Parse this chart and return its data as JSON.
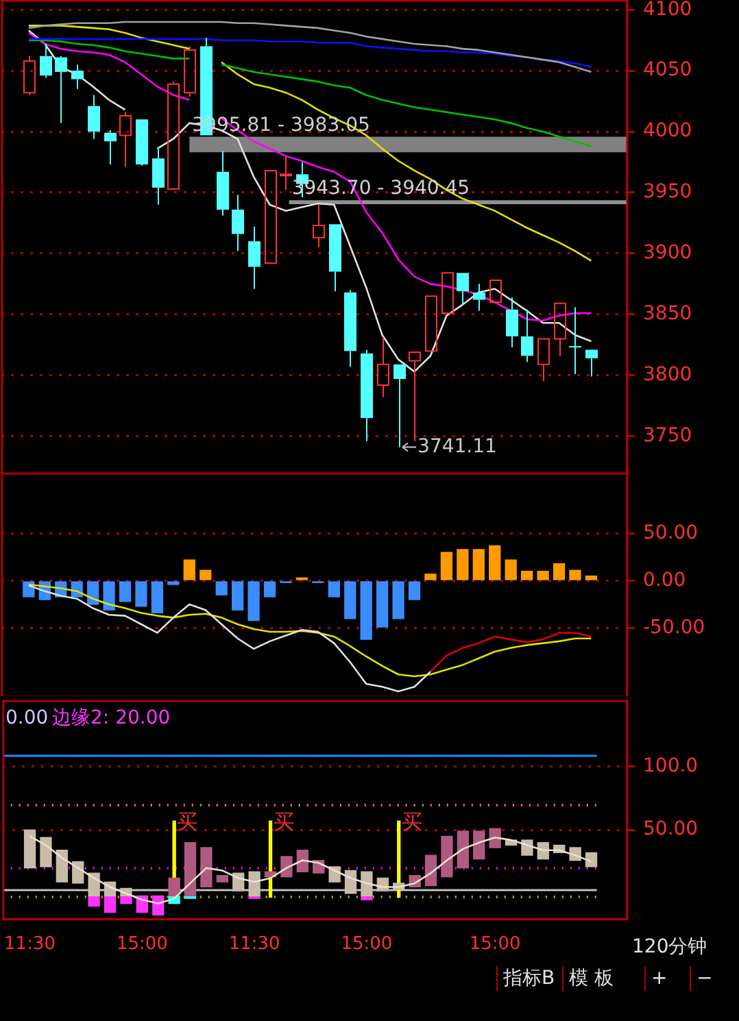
{
  "chart_data": [
    {
      "type": "candlestick",
      "categories": [
        null,
        null,
        null,
        null,
        null,
        null,
        null,
        null,
        null,
        null,
        null,
        null,
        null,
        null,
        null,
        null,
        null,
        null,
        null,
        null,
        null,
        null,
        null,
        null,
        null,
        null,
        null,
        null,
        null,
        null,
        null,
        null,
        null,
        null,
        null,
        null
      ],
      "ohlc": [
        [
          4032,
          4062,
          4030,
          4058
        ],
        [
          4062,
          4072,
          4044,
          4046
        ],
        [
          4061,
          4062,
          4007,
          4049
        ],
        [
          4050,
          4055,
          4035,
          4043
        ],
        [
          4021,
          4030,
          3994,
          4000
        ],
        [
          3999,
          4001,
          3973,
          3992
        ],
        [
          3997,
          4016,
          3971,
          4013
        ],
        [
          4010,
          4010,
          3972,
          3973
        ],
        [
          3978,
          3987,
          3940,
          3954
        ],
        [
          3953,
          4041,
          3953,
          4039
        ],
        [
          4032,
          4070,
          4029,
          4067
        ],
        [
          4070,
          4077,
          3997,
          3997
        ],
        [
          3967,
          3984,
          3931,
          3936
        ],
        [
          3936,
          3948,
          3902,
          3916
        ],
        [
          3910,
          3922,
          3871,
          3889
        ],
        [
          3892,
          3968,
          3892,
          3968
        ],
        [
          3964,
          3980,
          3952,
          3965
        ],
        [
          3965,
          3975,
          3946,
          3957
        ],
        [
          3913,
          3940,
          3905,
          3923
        ],
        [
          3924,
          3924,
          3869,
          3885
        ],
        [
          3868,
          3870,
          3807,
          3820
        ],
        [
          3818,
          3821,
          3746,
          3765
        ],
        [
          3792,
          3831,
          3782,
          3809
        ],
        [
          3809,
          3809,
          3741.11,
          3797
        ],
        [
          3812,
          3819,
          3746,
          3819
        ],
        [
          3820,
          3865,
          3820,
          3865
        ],
        [
          3851,
          3884,
          3851,
          3884
        ],
        [
          3884,
          3884,
          3858,
          3869
        ],
        [
          3868,
          3875,
          3853,
          3862
        ],
        [
          3860,
          3878,
          3860,
          3878
        ],
        [
          3854,
          3864,
          3823,
          3832
        ],
        [
          3832,
          3854,
          3811,
          3816
        ],
        [
          3809,
          3830,
          3795,
          3830
        ],
        [
          3830,
          3859,
          3816,
          3859
        ],
        [
          3824,
          3856,
          3801,
          3823
        ],
        [
          3821,
          3821,
          3799,
          3814
        ]
      ],
      "series": [
        {
          "type": "line",
          "color": "#a0a0a0",
          "values": [
            4085,
            4087,
            4088,
            4089,
            4089,
            4089,
            4090,
            4090,
            4090,
            4090,
            4090,
            4090,
            4090,
            4089,
            4089,
            4088,
            4087,
            4086,
            4085,
            4083,
            4081,
            4078,
            4076,
            4074,
            4072,
            4071,
            4070,
            4068,
            4067,
            4065,
            4063,
            4061,
            4059,
            4057,
            4053,
            4049
          ]
        },
        {
          "type": "line",
          "color": "#1010ff",
          "values": [
            4076,
            4076,
            4076,
            4076,
            4076,
            4076,
            4076,
            4076,
            4076,
            4076,
            4076,
            4076,
            4075,
            4075,
            4075,
            4074,
            4074,
            4074,
            4073,
            4073,
            4073,
            4070,
            4069,
            4068,
            4067,
            4066,
            4066,
            4065,
            4065,
            4064,
            4062,
            4061,
            4059,
            4058,
            4056,
            4053
          ]
        },
        {
          "type": "line",
          "color": "#00c000",
          "values": [
            4075,
            4075,
            4074,
            4072,
            4071,
            4069,
            4066,
            4064,
            4062,
            4060,
            4060,
            null,
            4055,
            4052,
            4049,
            4047,
            4045,
            4043,
            4041,
            4038,
            4036,
            4030,
            4026,
            4023,
            4020,
            4018,
            4016,
            4014,
            4012,
            4010,
            4007,
            4003,
            4000,
            3996,
            3992,
            3988
          ]
        },
        {
          "type": "line",
          "color": "#e0e000",
          "values": [
            4087,
            4087,
            4087,
            4086,
            4085,
            4084,
            4081,
            4077,
            4074,
            4071,
            4068,
            null,
            4057,
            4047,
            4039,
            4036,
            4032,
            4026,
            4018,
            4011,
            4005,
            3997,
            3986,
            3976,
            3968,
            3961,
            3952,
            3945,
            3940,
            3935,
            3928,
            3921,
            3915,
            3909,
            3902,
            3894
          ]
        },
        {
          "type": "line",
          "color": "#ff00ff",
          "values": [
            4081,
            4072,
            4068,
            4066,
            4065,
            4063,
            4057,
            4047,
            4037,
            4030,
            4026,
            null,
            4011,
            4001,
            3992,
            3986,
            3980,
            3976,
            3971,
            3967,
            3959,
            3934,
            3917,
            3895,
            3881,
            3875,
            3873,
            3870,
            3866,
            3860,
            3853,
            3846,
            3845,
            3849,
            3851,
            3851
          ]
        },
        {
          "type": "line",
          "color": "#e0e0e0",
          "values": [
            4083,
            4072,
            4053,
            4047,
            4037,
            4026,
            4018,
            null,
            3986,
            3994,
            4007,
            4005,
            4001,
            3994,
            3963,
            3940,
            3935,
            3938,
            3941,
            3940,
            3906,
            3872,
            3833,
            3813,
            3803,
            3816,
            3849,
            3858,
            3868,
            3871,
            3862,
            3853,
            3843,
            3843,
            3833,
            3828
          ]
        }
      ],
      "ylim": [
        3720,
        4108
      ],
      "yticks": [
        3750,
        3800,
        3850,
        3900,
        3950,
        4000,
        4050,
        4100
      ],
      "grid": "y",
      "tick_labels": "y",
      "bands": [
        {
          "axis": "y",
          "from": 3983.05,
          "to": 3995.81,
          "label": "3995.81 - 3983.05",
          "color": "#808080"
        },
        {
          "axis": "y",
          "from": 3940.45,
          "to": 3943.7,
          "label": "3943.70 - 3940.45",
          "color": "#909090"
        }
      ],
      "annotations": [
        "3741.11"
      ]
    },
    {
      "type": "bar",
      "categories": [
        null,
        null,
        null,
        null,
        null,
        null,
        null,
        null,
        null,
        null,
        null,
        null,
        null,
        null,
        null,
        null,
        null,
        null,
        null,
        null,
        null,
        null,
        null,
        null,
        null,
        null,
        null,
        null,
        null,
        null,
        null,
        null,
        null,
        null,
        null,
        null
      ],
      "series": [
        {
          "type": "bar",
          "values": [
            -17,
            -20,
            -17,
            -17,
            -25,
            -31,
            -22,
            -27,
            -34,
            -4,
            22,
            11,
            -15,
            -31,
            -42,
            -17,
            -2,
            3,
            -2,
            -17,
            -40,
            -62,
            -49,
            -40,
            -20,
            7,
            30,
            33,
            33,
            37,
            22,
            10,
            10,
            18,
            11,
            5
          ],
          "colors": [
            "#3a8cff",
            "#3a8cff",
            "#3a8cff",
            "#3a8cff",
            "#3a8cff",
            "#3a8cff",
            "#3a8cff",
            "#3a8cff",
            "#3a8cff",
            "#3a8cff",
            "#ff9a00",
            "#ff9a00",
            "#3a8cff",
            "#3a8cff",
            "#3a8cff",
            "#3a8cff",
            "#3a8cff",
            "#ff9a00",
            "#3a8cff",
            "#3a8cff",
            "#3a8cff",
            "#3a8cff",
            "#3a8cff",
            "#3a8cff",
            "#3a8cff",
            "#ff9a00",
            "#ff9a00",
            "#ff9a00",
            "#ff9a00",
            "#ff9a00",
            "#ff9a00",
            "#ff9a00",
            "#ff9a00",
            "#ff9a00",
            "#ff9a00",
            "#ff9a00"
          ]
        },
        {
          "type": "line",
          "color": "#e0e0e0",
          "values": [
            -5,
            -11,
            -16,
            -19,
            -29,
            -36,
            -37,
            -46,
            -55,
            -39,
            -25,
            -31,
            -46,
            -61,
            -72,
            -64,
            -58,
            -52,
            -54,
            -66,
            -86,
            -109,
            -112,
            -117,
            -112,
            -96,
            null,
            null,
            null,
            null,
            null,
            null,
            null,
            null,
            null,
            null
          ]
        },
        {
          "type": "line",
          "color": "#e00000",
          "values": [
            null,
            null,
            null,
            null,
            null,
            null,
            null,
            null,
            null,
            null,
            null,
            null,
            null,
            null,
            null,
            null,
            null,
            null,
            null,
            null,
            null,
            null,
            null,
            null,
            null,
            -96,
            -79,
            -71,
            -66,
            -59,
            -62,
            -65,
            -62,
            -55,
            -55,
            -59
          ]
        },
        {
          "type": "line",
          "color": "#e0e000",
          "values": [
            -4,
            -6,
            -8,
            -11,
            -19,
            -25,
            -29,
            -34,
            -37,
            -39,
            -36,
            -35,
            -39,
            -46,
            -51,
            -54,
            -54,
            -53,
            -55,
            -59,
            -69,
            -80,
            -90,
            -99,
            -101,
            -99,
            -94,
            -89,
            -82,
            -75,
            -71,
            -68,
            -66,
            -64,
            -61,
            -61
          ]
        }
      ],
      "ylim": [
        -122,
        114
      ],
      "yticks": [
        {
          "value": 50,
          "label": "50.00"
        },
        {
          "value": 0,
          "label": "0.00"
        },
        {
          "value": -50,
          "label": "-50.00"
        }
      ],
      "grid": "y",
      "tick_labels": "y"
    },
    {
      "type": "bar",
      "categories": [
        "11:30",
        null,
        null,
        null,
        null,
        null,
        null,
        "15:00",
        null,
        null,
        null,
        null,
        null,
        null,
        "11:30",
        null,
        null,
        null,
        null,
        null,
        null,
        "15:00",
        null,
        null,
        null,
        null,
        null,
        null,
        null,
        "15:00",
        null,
        null,
        null,
        null,
        null,
        null
      ],
      "series": [
        {
          "type": "bar",
          "color": "#c8bca8",
          "base": [
            20,
            21,
            9,
            8,
            -2,
            -2,
            -2,
            null,
            null,
            null,
            null,
            null,
            null,
            2,
            -2,
            null,
            null,
            null,
            null,
            9,
            0,
            -2,
            2,
            3,
            null,
            null,
            null,
            null,
            null,
            null,
            38,
            30,
            27,
            32,
            26,
            21
          ],
          "values": [
            30,
            23,
            25,
            17,
            18,
            11,
            6,
            null,
            null,
            null,
            null,
            null,
            null,
            14,
            19,
            null,
            null,
            null,
            null,
            12,
            18,
            19,
            10,
            5,
            null,
            null,
            null,
            null,
            null,
            null,
            4,
            12,
            13,
            6,
            10,
            11
          ]
        },
        {
          "type": "bar",
          "color": "#b05a82",
          "base": [
            null,
            null,
            null,
            null,
            null,
            null,
            null,
            null,
            null,
            -2,
            -2,
            5,
            9,
            null,
            null,
            13,
            13,
            17,
            16,
            null,
            null,
            null,
            null,
            null,
            5,
            6,
            13,
            20,
            27,
            36,
            null,
            null,
            null,
            null,
            null,
            null
          ],
          "values": [
            null,
            null,
            null,
            null,
            null,
            null,
            null,
            null,
            null,
            14,
            42,
            31,
            5,
            null,
            null,
            4,
            16,
            17,
            10,
            null,
            null,
            null,
            null,
            null,
            9,
            24,
            32,
            29,
            22,
            15,
            null,
            null,
            null,
            null,
            null,
            null
          ]
        },
        {
          "type": "bar",
          "color": "#ff33ff",
          "base": [
            null,
            null,
            null,
            null,
            -10,
            -15,
            -8,
            -15,
            -17,
            null,
            null,
            null,
            null,
            null,
            -4,
            null,
            null,
            null,
            null,
            null,
            null,
            -5,
            null,
            null,
            null,
            null,
            null,
            null,
            null,
            null,
            null,
            null,
            null,
            null,
            null,
            null
          ],
          "values": [
            null,
            null,
            null,
            null,
            8,
            13,
            6,
            13,
            15,
            null,
            null,
            null,
            null,
            null,
            2,
            null,
            null,
            null,
            null,
            null,
            null,
            3,
            null,
            null,
            null,
            null,
            null,
            null,
            null,
            null,
            null,
            null,
            null,
            null,
            null,
            null
          ]
        },
        {
          "type": "bar",
          "color": "#33ffff",
          "base": [
            null,
            null,
            null,
            null,
            null,
            null,
            null,
            null,
            null,
            -8,
            -4,
            null,
            null,
            null,
            null,
            null,
            null,
            null,
            null,
            null,
            null,
            null,
            null,
            null,
            null,
            null,
            null,
            null,
            null,
            null,
            null,
            null,
            null,
            null,
            null,
            null
          ],
          "values": [
            null,
            null,
            null,
            null,
            null,
            null,
            null,
            null,
            null,
            6,
            2,
            null,
            null,
            null,
            null,
            null,
            null,
            null,
            null,
            null,
            null,
            null,
            null,
            null,
            null,
            null,
            null,
            null,
            null,
            null,
            null,
            null,
            null,
            null,
            null,
            null
          ]
        },
        {
          "type": "bar",
          "color": "#ffff00",
          "base": [
            null,
            null,
            null,
            null,
            null,
            null,
            null,
            null,
            null,
            -3,
            null,
            null,
            null,
            null,
            null,
            -3,
            null,
            null,
            null,
            null,
            null,
            null,
            null,
            -3,
            null,
            null,
            null,
            null,
            null,
            null,
            null,
            null,
            null,
            null,
            null,
            null
          ],
          "values": [
            null,
            null,
            null,
            null,
            null,
            null,
            null,
            null,
            null,
            60,
            null,
            null,
            null,
            null,
            null,
            60,
            null,
            null,
            null,
            null,
            null,
            null,
            null,
            60,
            null,
            null,
            null,
            null,
            null,
            null,
            null,
            null,
            null,
            null,
            null,
            null
          ],
          "value_labels": [
            null,
            null,
            null,
            null,
            null,
            null,
            null,
            null,
            null,
            "买",
            null,
            null,
            null,
            null,
            null,
            "买",
            null,
            null,
            null,
            null,
            null,
            null,
            null,
            "买",
            null,
            null,
            null,
            null,
            null,
            null,
            null,
            null,
            null,
            null,
            null,
            null
          ]
        },
        {
          "type": "line",
          "color": "#e8e0d0",
          "values": [
            45,
            38,
            28,
            20,
            12,
            5,
            0,
            -5,
            -8,
            -4,
            8,
            20,
            18,
            12,
            9,
            12,
            20,
            26,
            24,
            18,
            12,
            8,
            5,
            5,
            8,
            16,
            26,
            35,
            40,
            44,
            42,
            38,
            34,
            34,
            30,
            25
          ]
        }
      ],
      "ylim": [
        -20,
        152
      ],
      "yticks": [
        {
          "value": 100,
          "label": "100.0"
        },
        {
          "value": 50,
          "label": "50.00"
        }
      ],
      "grid": "y",
      "ref_lines": [
        {
          "axis": "y",
          "value": 109,
          "color": "#1e90ff",
          "line_style": "solid"
        },
        {
          "axis": "y",
          "value": 3,
          "color": "#c0c0c0",
          "line_style": "solid"
        },
        {
          "axis": "y",
          "value": 70,
          "color": "#ff6680",
          "line_style": "dotted"
        },
        {
          "axis": "y",
          "value": 20,
          "color": "#ff00ff",
          "line_style": "dotted"
        },
        {
          "axis": "y",
          "value": -2,
          "color": "#b0b000",
          "line_style": "dotted"
        }
      ],
      "annotations": [
        "0.00",
        "边缘2: 20.00",
        "120分钟",
        "指标B",
        "模 板",
        "+",
        "−"
      ]
    }
  ]
}
